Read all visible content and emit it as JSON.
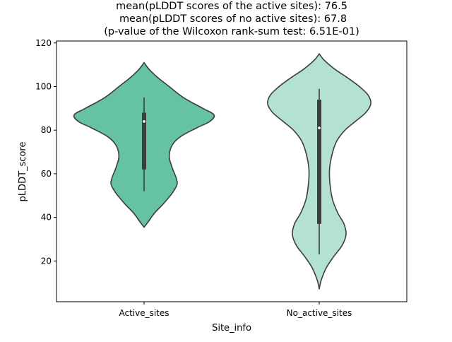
{
  "chart_data": {
    "type": "violin",
    "title_lines": [
      "mean(pLDDT scores of the active sites): 76.5",
      "mean(pLDDT scores of no active sites): 67.8",
      "(p-value of the Wilcoxon rank-sum test: 6.51E-01)"
    ],
    "xlabel": "Site_info",
    "ylabel": "pLDDT_score",
    "ylim": [
      1.3,
      120.9
    ],
    "yticks": [
      20,
      40,
      60,
      80,
      100,
      120
    ],
    "categories": [
      "Active_sites",
      "No_active_sites"
    ],
    "colors": [
      "#66c2a5",
      "#b3e2d5"
    ],
    "line_color": "#3d3d3d",
    "grid": false,
    "series": [
      {
        "name": "Active_sites",
        "density_profile": [
          [
            111,
            0
          ],
          [
            108,
            0.07
          ],
          [
            104,
            0.2
          ],
          [
            100,
            0.36
          ],
          [
            95,
            0.56
          ],
          [
            90,
            0.84
          ],
          [
            87,
            1.0
          ],
          [
            84,
            0.94
          ],
          [
            81,
            0.75
          ],
          [
            77,
            0.52
          ],
          [
            73,
            0.4
          ],
          [
            68,
            0.36
          ],
          [
            63,
            0.4
          ],
          [
            58,
            0.46
          ],
          [
            55,
            0.47
          ],
          [
            51,
            0.4
          ],
          [
            46,
            0.27
          ],
          [
            42,
            0.15
          ],
          [
            38,
            0.06
          ],
          [
            35.5,
            0
          ]
        ],
        "box": {
          "whisker_low": 52,
          "q1": 62,
          "median": 84,
          "q3": 88,
          "whisker_high": 95
        }
      },
      {
        "name": "No_active_sites",
        "density_profile": [
          [
            115,
            0
          ],
          [
            112,
            0.1
          ],
          [
            108,
            0.3
          ],
          [
            104,
            0.55
          ],
          [
            100,
            0.78
          ],
          [
            96,
            0.95
          ],
          [
            92,
            1.0
          ],
          [
            88,
            0.9
          ],
          [
            84,
            0.7
          ],
          [
            80,
            0.5
          ],
          [
            75,
            0.34
          ],
          [
            69,
            0.25
          ],
          [
            62,
            0.2
          ],
          [
            55,
            0.21
          ],
          [
            48,
            0.26
          ],
          [
            42,
            0.36
          ],
          [
            37,
            0.48
          ],
          [
            32,
            0.52
          ],
          [
            27,
            0.44
          ],
          [
            22,
            0.28
          ],
          [
            17,
            0.14
          ],
          [
            12,
            0.05
          ],
          [
            9,
            0.015
          ],
          [
            7,
            0
          ]
        ],
        "box": {
          "whisker_low": 23,
          "q1": 37,
          "median": 81,
          "q3": 94,
          "whisker_high": 99
        }
      }
    ]
  }
}
